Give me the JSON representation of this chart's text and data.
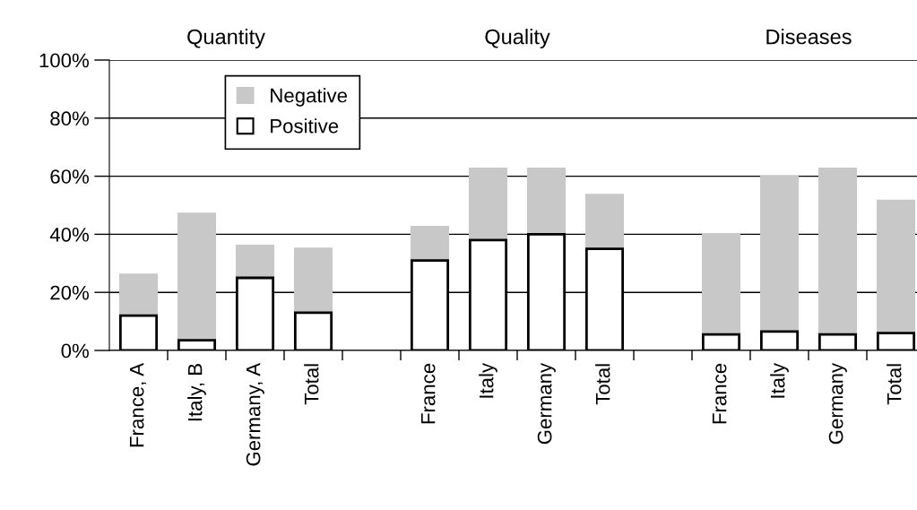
{
  "chart_data": {
    "type": "bar",
    "stacked": true,
    "categories": [
      "France, A",
      "Italy, B",
      "Germany, A",
      "Total",
      null,
      "France",
      "Italy",
      "Germany",
      "Total",
      null,
      "France",
      "Italy",
      "Germany",
      "Total"
    ],
    "series": [
      {
        "name": "Positive",
        "color": "#ffffff",
        "values": [
          12,
          3.5,
          25,
          13,
          null,
          31,
          38,
          40,
          35,
          null,
          5.5,
          6.5,
          5.5,
          6
        ]
      },
      {
        "name": "Negative",
        "color": "#c8c8c8",
        "values": [
          14,
          43.5,
          11,
          22,
          null,
          11.5,
          24.5,
          22.5,
          18.5,
          null,
          34.5,
          53.5,
          57,
          45.5
        ]
      }
    ],
    "ylim": [
      0,
      100
    ],
    "yticks": [
      {
        "value": 0,
        "label": "0%"
      },
      {
        "value": 20,
        "label": "20%"
      },
      {
        "value": 40,
        "label": "40%"
      },
      {
        "value": 60,
        "label": "60%"
      },
      {
        "value": 80,
        "label": "80%"
      },
      {
        "value": 100,
        "label": "100%"
      }
    ],
    "grid": "y",
    "legend": "top left",
    "annotations": [
      "Quantity",
      "Quality",
      "Diseases"
    ]
  }
}
